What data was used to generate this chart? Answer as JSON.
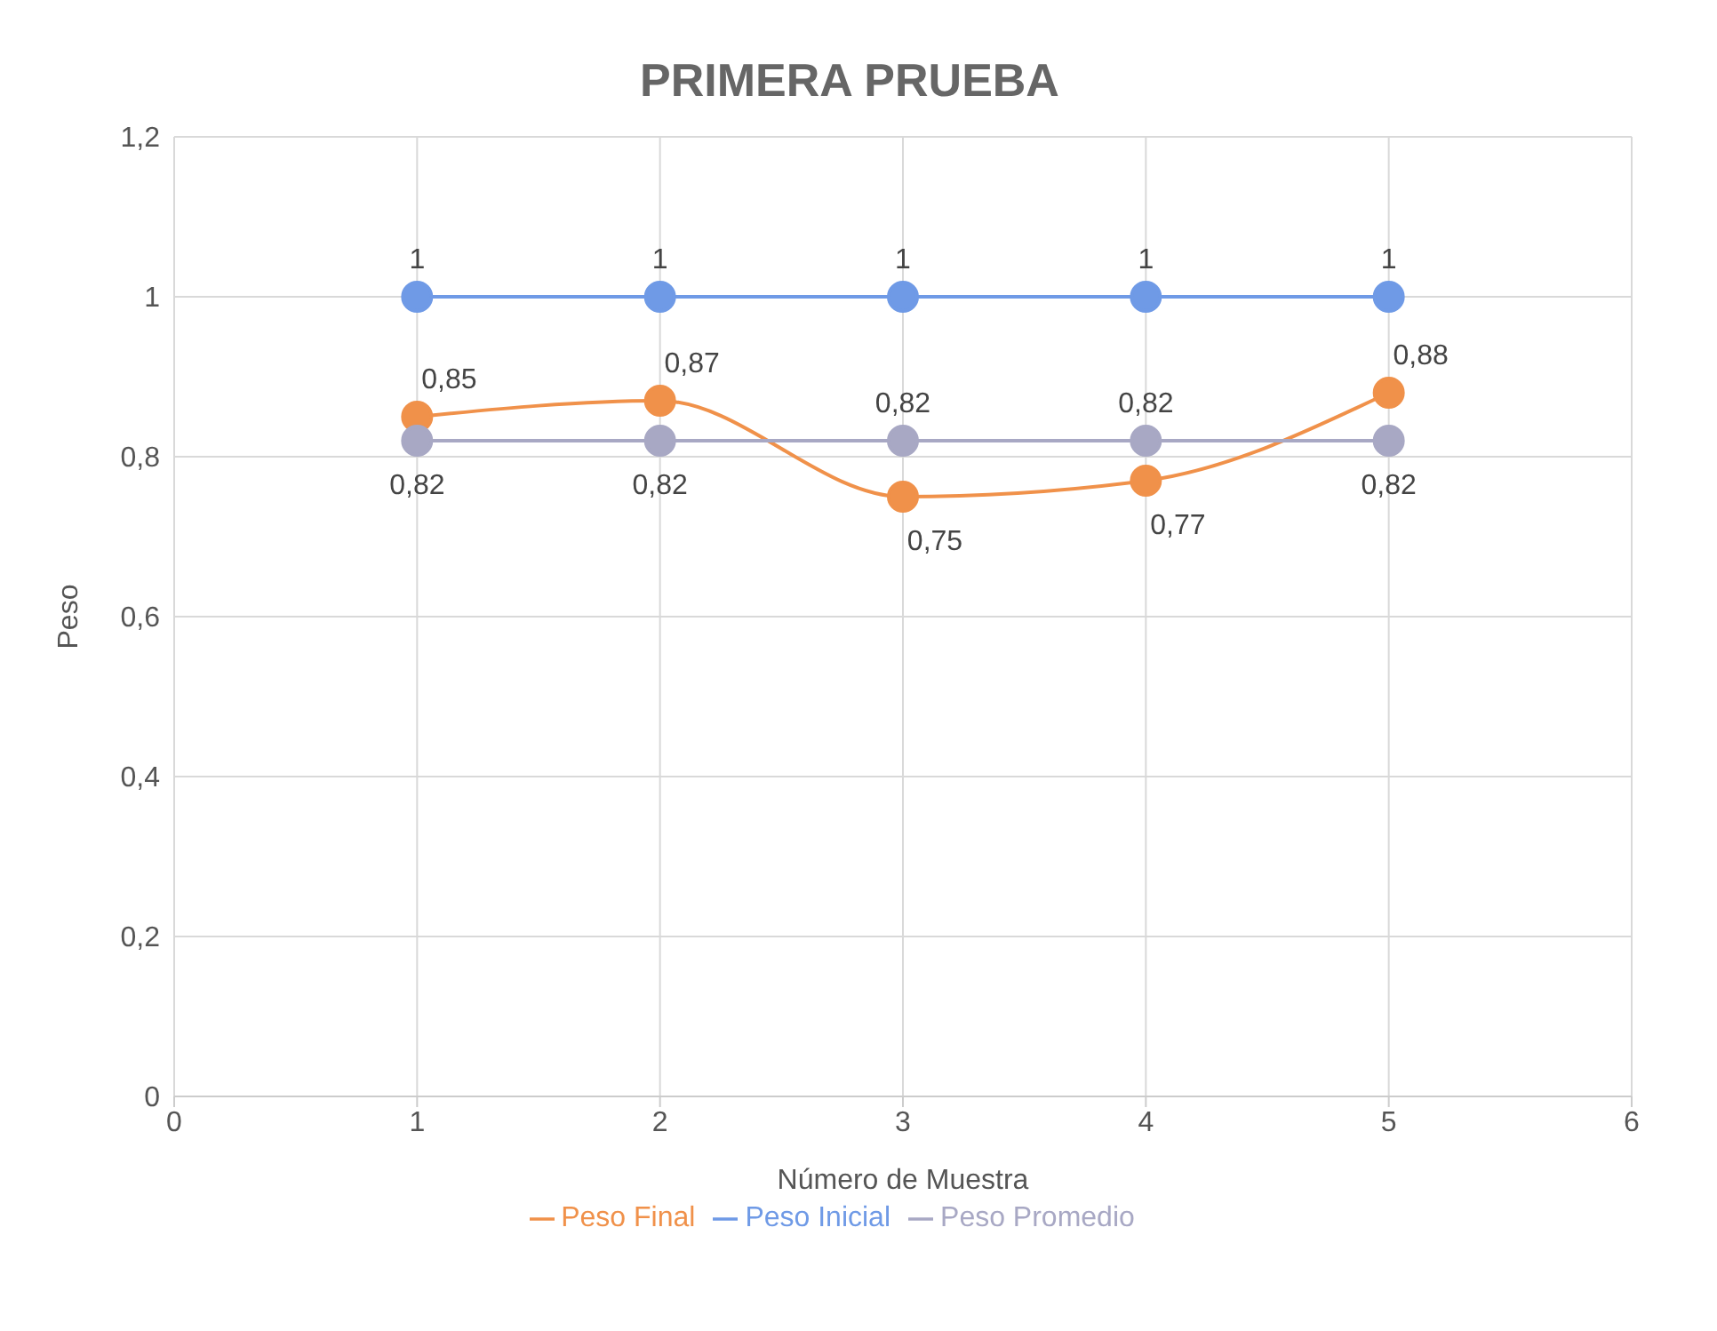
{
  "chart_data": {
    "type": "line",
    "title": "PRIMERA PRUEBA",
    "xlabel": "Número de Muestra",
    "ylabel": "Peso",
    "x": [
      1,
      2,
      3,
      4,
      5
    ],
    "series": [
      {
        "name": "Peso Inicial",
        "color": "#6f9ae6",
        "values": [
          1,
          1,
          1,
          1,
          1
        ],
        "value_labels": [
          "1",
          "1",
          "1",
          "1",
          "1"
        ]
      },
      {
        "name": "Peso Final",
        "color": "#f0914a",
        "values": [
          0.85,
          0.87,
          0.75,
          0.77,
          0.88
        ],
        "value_labels": [
          "0,85",
          "0,87",
          "0,75",
          "0,77",
          "0,88"
        ]
      },
      {
        "name": "Peso Promedio",
        "color": "#a8a8c4",
        "values": [
          0.82,
          0.82,
          0.82,
          0.82,
          0.82
        ],
        "value_labels": [
          "0,82",
          "0,82",
          "0,82",
          "0,82",
          "0,82"
        ]
      }
    ],
    "xlim": [
      0,
      6
    ],
    "xticks": [
      0,
      1,
      2,
      3,
      4,
      5,
      6
    ],
    "ylim": [
      0,
      1.2
    ],
    "yticks": [
      0,
      {
        "value": 0.2,
        "label": "0,2"
      },
      {
        "value": 0.4,
        "label": "0,4"
      },
      {
        "value": 0.6,
        "label": "0,6"
      },
      {
        "value": 0.8,
        "label": "0,8"
      },
      1,
      {
        "value": 1.2,
        "label": "1,2"
      }
    ],
    "grid": true,
    "legend": "bottom",
    "marker": "circle",
    "line_style": "solid"
  }
}
